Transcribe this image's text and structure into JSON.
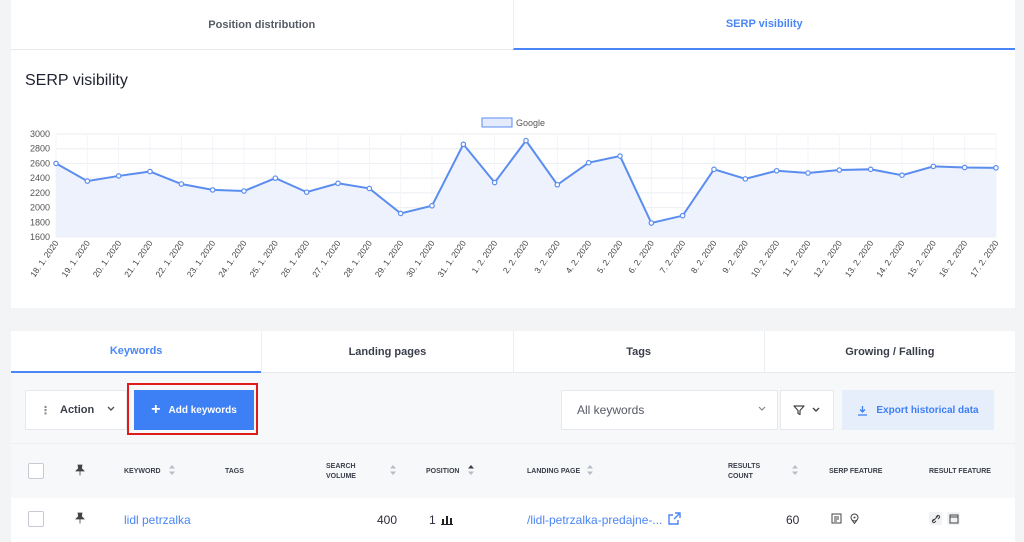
{
  "top_tabs": [
    {
      "label": "Position distribution",
      "active": false
    },
    {
      "label": "SERP visibility",
      "active": true
    }
  ],
  "chart_card": {
    "title": "SERP visibility"
  },
  "chart_data": {
    "type": "area",
    "title": "",
    "legend": "top-center",
    "series": [
      {
        "name": "Google",
        "color": "#5b8def",
        "values": [
          2600,
          2360,
          2430,
          2490,
          2320,
          2240,
          2225,
          2400,
          2210,
          2330,
          2260,
          1920,
          2025,
          2860,
          2340,
          2910,
          2310,
          2610,
          2700,
          1790,
          1890,
          2520,
          2390,
          2500,
          2470,
          2510,
          2520,
          2440,
          2560,
          2545,
          2540
        ]
      }
    ],
    "x": [
      "18. 1. 2020",
      "19. 1. 2020",
      "20. 1. 2020",
      "21. 1. 2020",
      "22. 1. 2020",
      "23. 1. 2020",
      "24. 1. 2020",
      "25. 1. 2020",
      "26. 1. 2020",
      "27. 1. 2020",
      "28. 1. 2020",
      "29. 1. 2020",
      "30. 1. 2020",
      "31. 1. 2020",
      "1. 2. 2020",
      "2. 2. 2020",
      "3. 2. 2020",
      "4. 2. 2020",
      "5. 2. 2020",
      "6. 2. 2020",
      "7. 2. 2020",
      "8. 2. 2020",
      "9. 2. 2020",
      "10. 2. 2020",
      "11. 2. 2020",
      "12. 2. 2020",
      "13. 2. 2020",
      "14. 2. 2020",
      "15. 2. 2020",
      "16. 2. 2020",
      "17. 2. 2020"
    ],
    "y_ticks": [
      "3000",
      "2800",
      "2600",
      "2400",
      "2200",
      "2000",
      "1800",
      "1600"
    ],
    "ylim": [
      1600,
      3000
    ],
    "grid": true
  },
  "sub_tabs": [
    {
      "label": "Keywords",
      "active": true
    },
    {
      "label": "Landing pages",
      "active": false
    },
    {
      "label": "Tags",
      "active": false
    },
    {
      "label": "Growing / Falling",
      "active": false
    }
  ],
  "toolbar": {
    "action_label": "Action",
    "add_label": "Add keywords",
    "filter_select_value": "All keywords",
    "export_label": "Export historical data"
  },
  "table": {
    "headers": {
      "keyword": "KEYWORD",
      "tags": "TAGS",
      "search_volume_1": "SEARCH",
      "search_volume_2": "VOLUME",
      "position": "POSITION",
      "landing_page": "LANDING PAGE",
      "results_count_1": "RESULTS",
      "results_count_2": "COUNT",
      "serp_feature": "SERP FEATURE",
      "result_feature": "RESULT FEATURE"
    },
    "rows": [
      {
        "keyword": "lidl petrzalka",
        "search_volume": "400",
        "position": "1",
        "landing_page": "/lidl-petrzalka-predajne-...",
        "results_count": "60"
      }
    ]
  },
  "colors": {
    "accent": "#4a86f5",
    "primary_button": "#3d7ff5",
    "highlight": "#e01b1b"
  }
}
